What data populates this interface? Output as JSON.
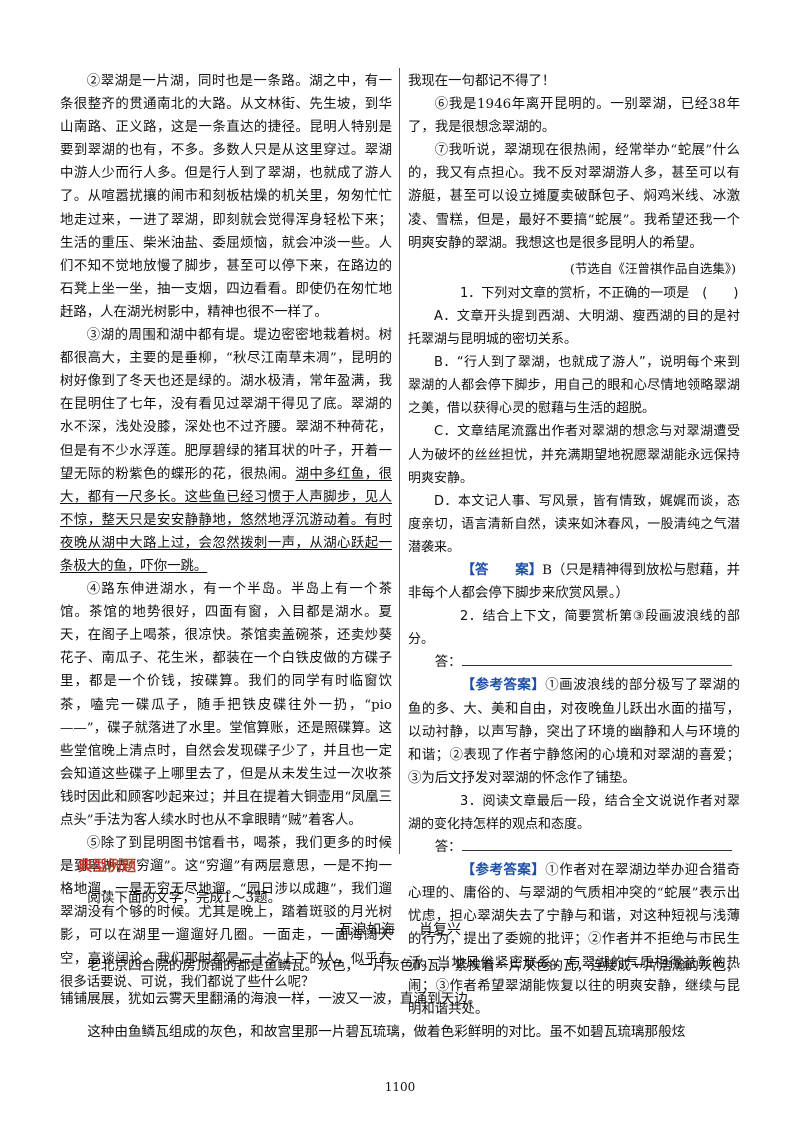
{
  "left_column": {
    "para2": "②翠湖是一片湖，同时也是一条路。湖之中，有一条很整齐的贯通南北的大路。从文林街、先生坡，到华山南路、正义路，这是一条直达的捷径。昆明人特别是要到翠湖的也有，不多。多数人只是从这里穿过。翠湖中游人少而行人多。但是行人到了翠湖，也就成了游人了。从喧嚣扰攘的闹市和刻板枯燥的机关里，匆匆忙忙地走过来，一进了翠湖，即刻就会觉得浑身轻松下来；生活的重压、柴米油盐、委屈烦恼，就会冲淡一些。人们不知不觉地放慢了脚步，甚至可以停下来，在路边的石凳上坐一坐，抽一支烟，四边看看。即使仍在匆忙地赶路，人在湖光树影中，精神也很不一样了。",
    "para3_before": "③湖的周围和湖中都有堤。堤边密密地栽着树。树都很高大，主要的是垂柳，“秋尽江南草未凋”，昆明的树好像到了冬天也还是绿的。湖水极清，常年盈满，我在昆明住了七年，没有看见过翠湖干得见了底。翠湖的水不深，浅处没膝，深处也不过齐腰。翠湖不种荷花，但是有不少水浮莲。肥厚碧绿的猪耳状的叶子，开着一望无际的粉紫色的蝶形的花，很热闹。",
    "para3_underlined": "湖中多红鱼，很大，都有一尺多长。这些鱼已经习惯于人声脚步，见人不惊，整天只是安安静静地，悠然地浮沉游动着。有时夜晚从湖中大路上过，会忽然拨刺一声，从湖心跃起一条极大的鱼，吓你一跳。",
    "para4": "④路东伸进湖水，有一个半岛。半岛上有一个茶馆。茶馆的地势很好，四面有窗，入目都是湖水。夏天，在阁子上喝茶，很凉快。茶馆卖盖碗茶，还卖炒葵花子、南瓜子、花生米，都装在一个白铁皮做的方碟子里，都是一个价钱，按碟算。我们的同学有时临窗饮茶，嗑完一碟瓜子，随手把铁皮碟往外一扔，“pio——”，碟子就落进了水里。堂倌算账，还是照碟算。这些堂倌晚上清点时，自然会发现碟子少了，并且也一定会知道这些碟子上哪里去了，但是从未发生过一次收茶钱时因此和顾客吵起来过；并且在提着大铜壶用“凤凰三点头”手法为客人续水时也从不拿眼睛“贼”着客人。",
    "para5": "⑤除了到昆明图书馆看书，喝茶，我们更多的时候是到翠湖去“穷遛”。这“穷遛”有两层意思，一是不拘一格地遛，一是无穷无尽地遛。“园日涉以成趣”，我们遛翠湖没有个够的时候。尤其是晚上，踏着斑驳的月光树影，可以在湖里一遛遛好几圈。一面走，一面海阔天空，高谈阔论。我们那时都是二十岁上下的人，似乎有很多话要说、可说，我们都说了些什么呢？"
  },
  "right_column": {
    "para5_end": "我现在一句都记不得了！",
    "para6": "⑥我是1946年离开昆明的。一别翠湖，已经38年了，我是很想念翠湖的。",
    "para7": "⑦我听说，翠湖现在很热闹，经常举办“蛇展”什么的，我又有点担心。我不反对翠湖游人多，甚至可以有游艇，甚至可以设立摊厦卖破酥包子、焖鸡米线、冰激凌、雪糕，但是，最好不要搞“蛇展”。我希望还我一个明爽安静的翠湖。我想这也是很多昆明人的希望。",
    "source": "(节选自《汪曾祺作品自选集》)",
    "q1": {
      "number": "1．",
      "stem": "下列对文章的赏析，不正确的一项是　(　　)",
      "options": [
        "A．文章开头提到西湖、大明湖、瘦西湖的目的是衬托翠湖与昆明城的密切关系。",
        "B．“行人到了翠湖，也就成了游人”，说明每个来到翠湖的人都会停下脚步，用自己的眼和心尽情地领略翠湖之美，借以获得心灵的慰藉与生活的超脱。",
        "C．文章结尾流露出作者对翠湖的想念与对翠湖遭受人为破坏的丝丝担忧，并充满期望地祝愿翠湖能永远保持明爽安静。",
        "D．本文记人事、写风景，皆有情致，娓娓而谈，态度亲切，语言清新自然，读来如沐春风，一股清纯之气潜潜袭来。"
      ],
      "answer_tag": "【答　　案】",
      "answer": "B（只是精神得到放松与慰藉，并非每个人都会停下脚步来欣赏风景。）"
    },
    "q2": {
      "number": "2．",
      "stem": "结合上下文，简要赏析第③段画波浪线的部分。",
      "answer_label": "答：",
      "ref_tag": "【参考答案】",
      "ref_answer": "①画波浪线的部分极写了翠湖的鱼的多、大、美和自由，对夜晚鱼儿跃出水面的描写，以动衬静，以声写静，突出了环境的幽静和人与环境的和谐；②表现了作者宁静悠闲的心境和对翠湖的喜爱；③为后文抒发对翠湖的怀念作了铺垫。"
    },
    "q3": {
      "number": "3．",
      "stem": "阅读文章最后一段，结合全文说说作者对翠湖的变化持怎样的观点和态度。",
      "answer_label": "答：",
      "ref_tag": "【参考答案】",
      "ref_answer": "①作者对在翠湖边举办迎合猎奇心理的、庸俗的、与翠湖的气质相冲突的“蛇展”表示出忧虑，担心翠湖失去了宁静与和谐，对这种短视与浅薄的行为，提出了委婉的批评；②作者并不拒绝与市民生活、当地风俗紧密联系，与翠湖的气质相得益彰的热闹；③作者希望翠湖能恢复以往的明爽安静，继续与昆明和谐共处。"
    }
  },
  "section": {
    "title": "典型例题",
    "instruction": "阅读下面的文字，完成1～3题。",
    "essay_title": "瓦浪如海",
    "essay_author": "肖复兴",
    "essay_para1": "老北京四合院的房顶铺的都是鱼鳞瓦。灰色，一片灰色的瓦，紧挨着一片灰色的瓦，连接成一片浩瀚的灰色，铺铺展展，犹如云雾天里翻涌的海浪一样，一波又一波，直涌到天边。",
    "essay_para2": "这种由鱼鳞瓦组成的灰色，和故宫里那一片碧瓦琉璃，做着色彩鲜明的对比。虽不如碧瓦琉璃那般炫"
  },
  "page_number": "1100"
}
